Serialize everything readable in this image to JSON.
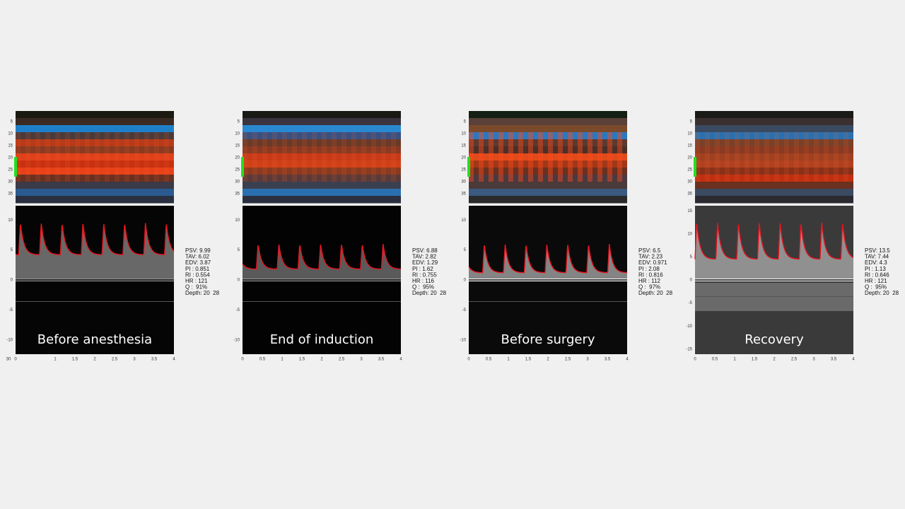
{
  "panels": [
    {
      "label": "Before anesthesia",
      "stats": [
        "PSV: 9.99",
        "TAV: 6.02",
        "EDV: 3.87",
        "PI : 0.851",
        "RI : 0.554",
        "HR : 121",
        "Q :  91%",
        "Depth: 20  28"
      ],
      "depth_ticks": [
        5,
        10,
        15,
        20,
        25,
        30,
        35
      ],
      "depth_lim": [
        0.6,
        38.8
      ],
      "velocity_ticks": [
        10,
        5,
        0,
        -5,
        -10
      ],
      "velocity_lim": [
        -12.4,
        12.4
      ],
      "time_ticks": [
        0,
        1,
        1.5,
        2,
        2.5,
        3,
        3.5,
        4
      ],
      "time_lim": [
        0,
        4
      ],
      "corner_label": "30"
    },
    {
      "label": "End of induction",
      "stats": [
        "PSV: 6.88",
        "TAV: 2.82",
        "EDV: 1.29",
        "PI : 1.62",
        "RI : 0.755",
        "HR : 116",
        "Q :  95%",
        "Depth: 20  28"
      ],
      "depth_ticks": [
        5,
        10,
        15,
        20,
        25,
        30,
        35
      ],
      "depth_lim": [
        0.6,
        38.8
      ],
      "velocity_ticks": [
        10,
        5,
        0,
        -5,
        -10
      ],
      "velocity_lim": [
        -12.4,
        12.4
      ],
      "time_ticks": [
        0,
        0.5,
        1,
        1.5,
        2,
        2.5,
        3,
        3.5,
        4
      ],
      "time_lim": [
        0,
        4
      ]
    },
    {
      "label": "Before surgery",
      "stats": [
        "PSV: 6.5",
        "TAV: 2.23",
        "EDV: 0.971",
        "PI : 2.08",
        "RI : 0.816",
        "HR : 112",
        "Q :  97%",
        "Depth: 20  28"
      ],
      "depth_ticks": [
        5,
        10,
        15,
        20,
        25,
        30,
        35
      ],
      "depth_lim": [
        0.6,
        38.8
      ],
      "velocity_ticks": [
        10,
        5,
        0,
        -5,
        -10
      ],
      "velocity_lim": [
        -12.4,
        12.4
      ],
      "time_ticks": [
        0,
        0.5,
        1,
        1.5,
        2,
        2.5,
        3,
        3.5,
        4
      ],
      "time_lim": [
        0,
        4
      ]
    },
    {
      "label": "Recovery",
      "stats": [
        "PSV: 13.5",
        "TAV: 7.44",
        "EDV: 4.3",
        "PI : 1.13",
        "RI : 0.646",
        "HR : 121",
        "Q :  95%",
        "Depth: 20  28"
      ],
      "depth_ticks": [
        5,
        10,
        15,
        20,
        25,
        30,
        35
      ],
      "depth_lim": [
        0.6,
        38.8
      ],
      "velocity_ticks": [
        15,
        10,
        5,
        0,
        -5,
        -10,
        -15
      ],
      "velocity_lim": [
        -16.1,
        16.1
      ],
      "time_ticks": [
        0,
        0.5,
        1,
        1.5,
        2,
        2.5,
        3,
        3.5,
        4
      ],
      "time_lim": [
        0,
        4
      ]
    }
  ]
}
